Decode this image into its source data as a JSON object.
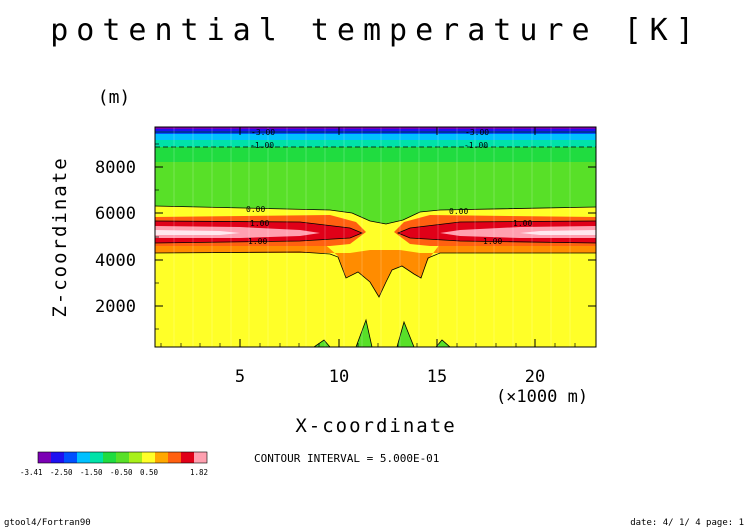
{
  "chart_data": {
    "type": "contour",
    "title": "potential temperature [K]",
    "xlabel": "X-coordinate",
    "ylabel": "Z-coordinate",
    "x_unit": "(×1000 m)",
    "y_unit": "(m)",
    "xlim": [
      0.25,
      23.75
    ],
    "ylim": [
      250,
      9750
    ],
    "x_ticks": [
      "5",
      "10",
      "15",
      "20"
    ],
    "y_ticks": [
      "2000",
      "4000",
      "6000",
      "8000"
    ],
    "contour_interval_text": "CONTOUR INTERVAL = 5.000E-01",
    "contour_labels": [
      "-3.00",
      "-1.00",
      "0.00",
      "1.00"
    ],
    "colorbar": {
      "tick_labels": [
        "-3.41",
        "-2.50",
        "-1.50",
        "-0.50",
        "0.50",
        "1.82"
      ],
      "colors": [
        "#7b00b4",
        "#1e10f0",
        "#0050ff",
        "#00c0ff",
        "#00e2a8",
        "#20dc40",
        "#58e028",
        "#a8f01a",
        "#ffff28",
        "#ffa800",
        "#ff6010",
        "#e00018",
        "#ffa0b0"
      ]
    }
  },
  "footer": {
    "left": "gtool4/Fortran90",
    "right": "date: 4/ 1/ 4 page: 1"
  }
}
